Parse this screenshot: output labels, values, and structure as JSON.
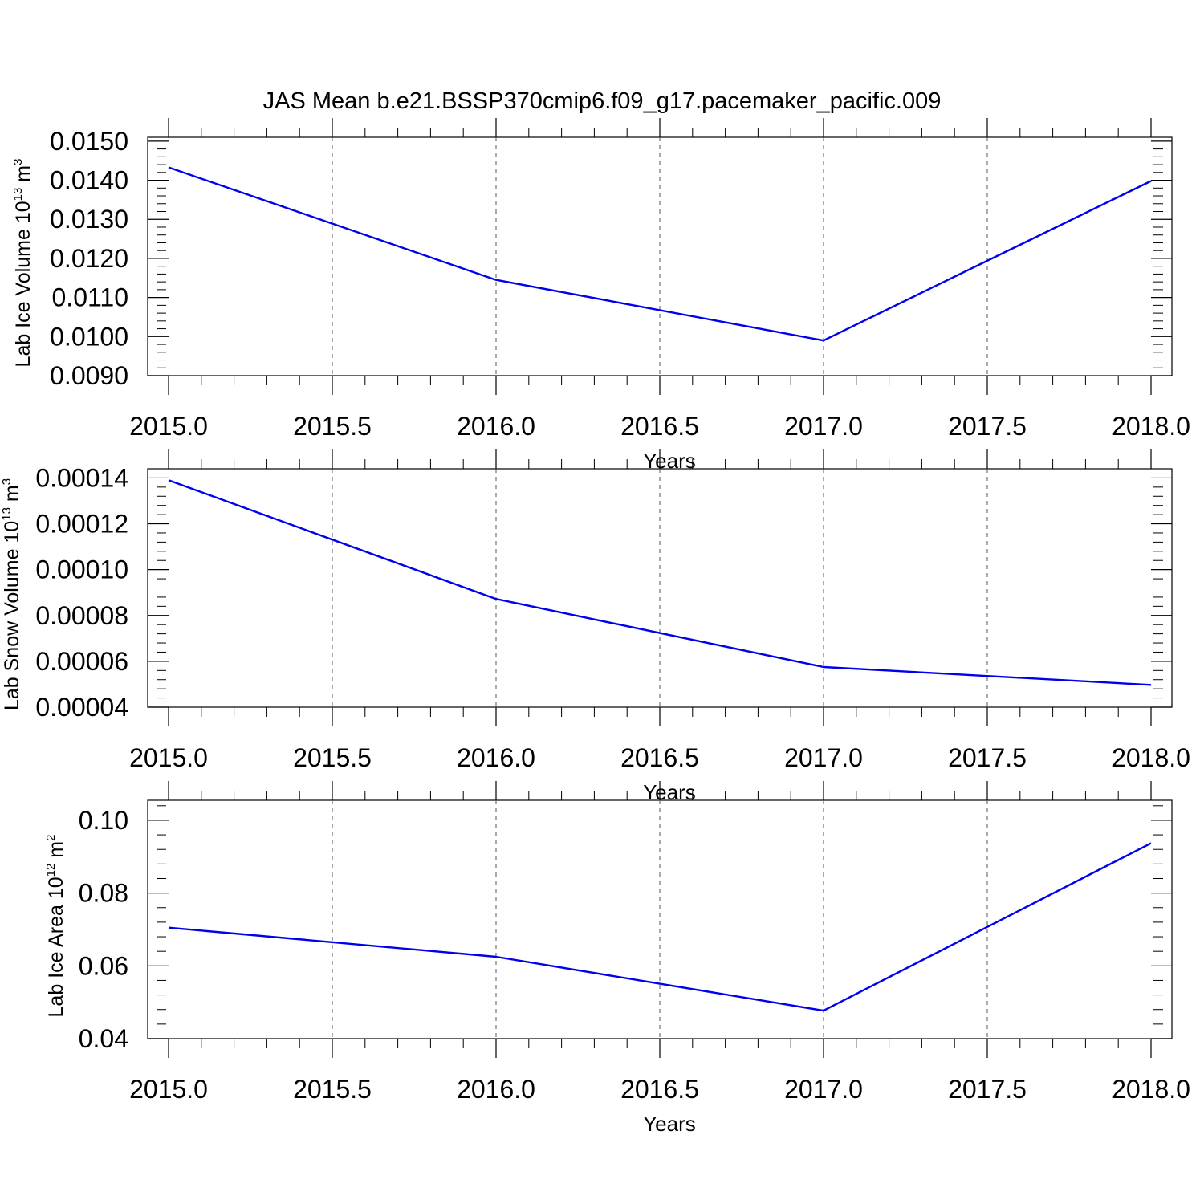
{
  "title": "JAS Mean b.e21.BSSP370cmip6.f09_g17.pacemaker_pacific.009",
  "line_color": "#0000ee",
  "chart_data": [
    {
      "type": "line",
      "ylabel": {
        "main": "Lab Ice Volume 10",
        "exp": "13",
        "unit": " m",
        "unit_exp": "3"
      },
      "xlabel": "Years",
      "x": [
        2015,
        2016,
        2017,
        2018
      ],
      "values": [
        0.01433,
        0.01145,
        0.0099,
        0.01398
      ],
      "xlim": [
        2015,
        2018
      ],
      "ylim": [
        0.009,
        0.0151
      ],
      "xticks": [
        "2015.0",
        "2015.5",
        "2016.0",
        "2016.5",
        "2017.0",
        "2017.5",
        "2018.0"
      ],
      "yticks": [
        "0.0090",
        "0.0100",
        "0.0110",
        "0.0120",
        "0.0130",
        "0.0140",
        "0.0150"
      ],
      "grid": "vertical dashed"
    },
    {
      "type": "line",
      "ylabel": {
        "main": "Lab Snow Volume 10",
        "exp": "13",
        "unit": " m",
        "unit_exp": "3"
      },
      "xlabel": "Years",
      "x": [
        2015,
        2016,
        2017,
        2018
      ],
      "values": [
        0.000139,
        8.72e-05,
        5.75e-05,
        4.97e-05
      ],
      "xlim": [
        2015,
        2018
      ],
      "ylim": [
        4e-05,
        0.000144
      ],
      "xticks": [
        "2015.0",
        "2015.5",
        "2016.0",
        "2016.5",
        "2017.0",
        "2017.5",
        "2018.0"
      ],
      "yticks": [
        "0.00004",
        "0.00006",
        "0.00008",
        "0.00010",
        "0.00012",
        "0.00014"
      ],
      "grid": "vertical dashed"
    },
    {
      "type": "line",
      "ylabel": {
        "main": "Lab Ice Area 10",
        "exp": "12",
        "unit": " m",
        "unit_exp": "2"
      },
      "xlabel": "Years",
      "x": [
        2015,
        2016,
        2017,
        2018
      ],
      "values": [
        0.0705,
        0.0625,
        0.0477,
        0.0937
      ],
      "xlim": [
        2015,
        2018
      ],
      "ylim": [
        0.04,
        0.1055
      ],
      "xticks": [
        "2015.0",
        "2015.5",
        "2016.0",
        "2016.5",
        "2017.0",
        "2017.5",
        "2018.0"
      ],
      "yticks": [
        "0.04",
        "0.06",
        "0.08",
        "0.10"
      ],
      "grid": "vertical dashed"
    }
  ]
}
